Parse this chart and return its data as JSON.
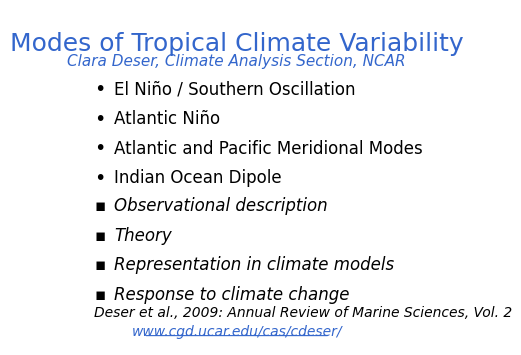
{
  "title": "Modes of Tropical Climate Variability",
  "subtitle": "Clara Deser, Climate Analysis Section, NCAR",
  "title_color": "#3366CC",
  "subtitle_color": "#3366CC",
  "title_fontsize": 18,
  "subtitle_fontsize": 11,
  "background_color": "#FFFFFF",
  "bullet_items": [
    "El Niño / Southern Oscillation",
    "Atlantic Niño",
    "Atlantic and Pacific Meridional Modes",
    "Indian Ocean Dipole"
  ],
  "square_items": [
    "Observational description",
    "Theory",
    "Representation in climate models",
    "Response to climate change"
  ],
  "bullet_color": "#000000",
  "bullet_fontsize": 12,
  "square_fontsize": 12,
  "reference_text": "Deser et al., 2009: Annual Review of Marine Sciences, Vol. 2",
  "url_text": "www.cgd.ucar.edu/cas/cdeser/",
  "reference_fontsize": 10,
  "url_color": "#3366CC",
  "ref_color": "#000000"
}
